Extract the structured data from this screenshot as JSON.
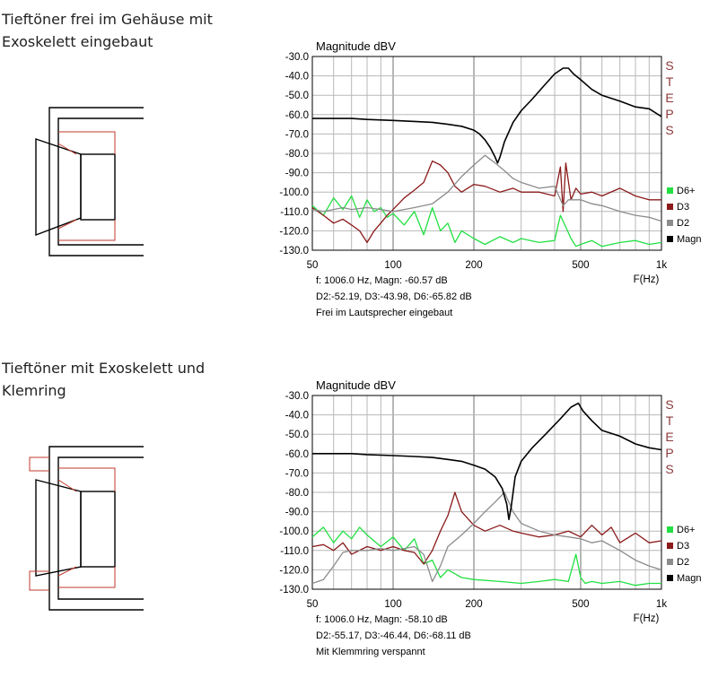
{
  "sections": [
    {
      "heading_lines": [
        "Tieftöner frei im Gehäuse mit",
        "Exoskelett eingebaut"
      ],
      "caption": "Frei im Lautsprecher eingebaut",
      "info_line1": "f: 1006.0 Hz, Magn: -60.57 dB",
      "info_line2": "D2:-52.19, D3:-43.98, D6:-65.82 dB"
    },
    {
      "heading_lines": [
        "Tieftöner mit Exoskelett und",
        "Klemring"
      ],
      "caption": "Mit Klemmring verspannt",
      "info_line1": "f: 1006.0 Hz, Magn: -58.10 dB",
      "info_line2": "D2:-55.17, D3:-46.44, D6:-68.11 dB"
    }
  ],
  "side_label": [
    "S",
    "T",
    "E",
    "P",
    "S"
  ],
  "colors": {
    "magn": "#000000",
    "d2": "#8c8c8c",
    "d3": "#8b1a1a",
    "d6": "#22e043",
    "drawing_red": "#c0392b"
  },
  "chart_data": [
    {
      "type": "line",
      "title": "Magnitude dBV",
      "xlabel": "F(Hz)",
      "ylabel": "",
      "x_scale": "log",
      "xlim": [
        50,
        1000
      ],
      "ylim": [
        -130,
        -30
      ],
      "x_ticks": [
        50,
        100,
        200,
        500,
        1000
      ],
      "x_tick_labels": [
        "50",
        "100",
        "200",
        "500",
        "1k"
      ],
      "y_ticks": [
        -30,
        -40,
        -50,
        -60,
        -70,
        -80,
        -90,
        -100,
        -110,
        -120,
        -130
      ],
      "y_tick_labels": [
        "-30.0",
        "-40.0",
        "-50.0",
        "-60.0",
        "-70.0",
        "-80.0",
        "-90.0",
        "-100.0",
        "-110.0",
        "-120.0",
        "-130.0"
      ],
      "grid": true,
      "legend_position": "bottom-right",
      "series": [
        {
          "name": "D6+",
          "color": "#22e043",
          "x": [
            50,
            55,
            60,
            65,
            70,
            75,
            80,
            85,
            90,
            95,
            100,
            110,
            120,
            130,
            140,
            150,
            160,
            170,
            180,
            200,
            220,
            250,
            280,
            300,
            350,
            400,
            420,
            440,
            460,
            480,
            500,
            550,
            600,
            700,
            800,
            900,
            1000
          ],
          "y": [
            -107,
            -112,
            -103,
            -109,
            -102,
            -113,
            -104,
            -110,
            -108,
            -113,
            -111,
            -117,
            -110,
            -122,
            -108,
            -120,
            -116,
            -126,
            -120,
            -124,
            -127,
            -123,
            -126,
            -124,
            -126,
            -125,
            -112,
            -118,
            -124,
            -128,
            -127,
            -125,
            -128,
            -126,
            -125,
            -127,
            -126
          ]
        },
        {
          "name": "D3",
          "color": "#8b1a1a",
          "x": [
            50,
            55,
            60,
            65,
            70,
            75,
            80,
            85,
            90,
            95,
            100,
            110,
            120,
            130,
            140,
            150,
            160,
            170,
            180,
            200,
            220,
            250,
            280,
            300,
            350,
            400,
            420,
            430,
            440,
            460,
            480,
            500,
            550,
            600,
            700,
            800,
            900,
            1000
          ],
          "y": [
            -108,
            -112,
            -116,
            -114,
            -117,
            -120,
            -126,
            -120,
            -116,
            -112,
            -109,
            -103,
            -99,
            -95,
            -84,
            -86,
            -90,
            -97,
            -100,
            -96,
            -97,
            -100,
            -98,
            -100,
            -100,
            -102,
            -87,
            -110,
            -85,
            -104,
            -98,
            -101,
            -100,
            -102,
            -98,
            -102,
            -104,
            -104
          ]
        },
        {
          "name": "D2",
          "color": "#8c8c8c",
          "x": [
            50,
            55,
            60,
            65,
            70,
            80,
            90,
            100,
            110,
            120,
            140,
            160,
            180,
            200,
            220,
            240,
            260,
            280,
            300,
            350,
            400,
            430,
            450,
            500,
            550,
            600,
            700,
            800,
            900,
            1000
          ],
          "y": [
            -109,
            -110,
            -109,
            -108,
            -109,
            -108,
            -109,
            -110,
            -109,
            -108,
            -106,
            -100,
            -92,
            -86,
            -81,
            -85,
            -89,
            -93,
            -95,
            -98,
            -97,
            -107,
            -104,
            -104,
            -106,
            -107,
            -110,
            -112,
            -113,
            -115
          ]
        },
        {
          "name": "Magn",
          "color": "#000000",
          "x": [
            50,
            60,
            70,
            80,
            100,
            120,
            140,
            160,
            180,
            200,
            210,
            220,
            230,
            240,
            245,
            250,
            260,
            280,
            300,
            330,
            360,
            400,
            430,
            450,
            470,
            500,
            550,
            600,
            700,
            800,
            900,
            1000
          ],
          "y": [
            -62,
            -62,
            -62,
            -62.5,
            -63,
            -63.5,
            -64,
            -65,
            -66,
            -68,
            -70,
            -73,
            -77,
            -82,
            -85,
            -82,
            -74,
            -64,
            -58,
            -52,
            -46,
            -39,
            -36,
            -36,
            -39,
            -42,
            -47,
            -50,
            -53,
            -56,
            -57,
            -61
          ]
        }
      ]
    },
    {
      "type": "line",
      "title": "Magnitude dBV",
      "xlabel": "F(Hz)",
      "ylabel": "",
      "x_scale": "log",
      "xlim": [
        50,
        1000
      ],
      "ylim": [
        -130,
        -30
      ],
      "x_ticks": [
        50,
        100,
        200,
        500,
        1000
      ],
      "x_tick_labels": [
        "50",
        "100",
        "200",
        "500",
        "1k"
      ],
      "y_ticks": [
        -30,
        -40,
        -50,
        -60,
        -70,
        -80,
        -90,
        -100,
        -110,
        -120,
        -130
      ],
      "y_tick_labels": [
        "-30.0",
        "-40.0",
        "-50.0",
        "-60.0",
        "-70.0",
        "-80.0",
        "-90.0",
        "-100.0",
        "-110.0",
        "-120.0",
        "-130.0"
      ],
      "grid": true,
      "legend_position": "bottom-right",
      "series": [
        {
          "name": "D6+",
          "color": "#22e043",
          "x": [
            50,
            55,
            60,
            65,
            70,
            75,
            80,
            90,
            100,
            110,
            120,
            130,
            140,
            150,
            160,
            180,
            200,
            250,
            300,
            350,
            400,
            450,
            480,
            500,
            520,
            550,
            600,
            700,
            800,
            900,
            1000
          ],
          "y": [
            -103,
            -98,
            -106,
            -100,
            -104,
            -98,
            -102,
            -108,
            -103,
            -110,
            -104,
            -117,
            -115,
            -124,
            -120,
            -124,
            -125,
            -126,
            -127,
            -126,
            -125,
            -126,
            -112,
            -124,
            -127,
            -126,
            -127,
            -126,
            -128,
            -127,
            -127
          ]
        },
        {
          "name": "D3",
          "color": "#8b1a1a",
          "x": [
            50,
            55,
            60,
            65,
            70,
            80,
            90,
            100,
            110,
            120,
            130,
            140,
            150,
            160,
            170,
            180,
            200,
            220,
            250,
            280,
            300,
            350,
            400,
            450,
            500,
            550,
            600,
            650,
            700,
            800,
            900,
            1000
          ],
          "y": [
            -108,
            -107,
            -110,
            -106,
            -112,
            -108,
            -110,
            -108,
            -110,
            -111,
            -117,
            -110,
            -100,
            -92,
            -80,
            -90,
            -97,
            -100,
            -97,
            -100,
            -101,
            -103,
            -102,
            -100,
            -103,
            -97,
            -102,
            -98,
            -106,
            -101,
            -106,
            -105
          ]
        },
        {
          "name": "D2",
          "color": "#8c8c8c",
          "x": [
            50,
            55,
            60,
            65,
            70,
            80,
            90,
            100,
            110,
            120,
            130,
            140,
            150,
            160,
            180,
            200,
            220,
            240,
            260,
            280,
            300,
            350,
            400,
            450,
            500,
            550,
            600,
            700,
            800,
            900,
            1000
          ],
          "y": [
            -127,
            -125,
            -118,
            -111,
            -110,
            -110,
            -109,
            -110,
            -109,
            -108,
            -112,
            -126,
            -118,
            -108,
            -102,
            -96,
            -90,
            -85,
            -80,
            -90,
            -96,
            -100,
            -102,
            -103,
            -104,
            -106,
            -105,
            -110,
            -115,
            -118,
            -120
          ]
        },
        {
          "name": "Magn",
          "color": "#000000",
          "x": [
            50,
            60,
            70,
            80,
            100,
            120,
            140,
            160,
            180,
            200,
            220,
            240,
            255,
            265,
            270,
            275,
            285,
            300,
            330,
            370,
            420,
            460,
            490,
            510,
            550,
            600,
            700,
            800,
            900,
            1000
          ],
          "y": [
            -60,
            -60,
            -60,
            -60.5,
            -61,
            -61.5,
            -62,
            -63,
            -64,
            -66,
            -68,
            -72,
            -78,
            -86,
            -94,
            -88,
            -72,
            -64,
            -57,
            -50,
            -42,
            -36,
            -34,
            -38,
            -43,
            -48,
            -51,
            -55,
            -57,
            -58
          ]
        }
      ]
    }
  ]
}
